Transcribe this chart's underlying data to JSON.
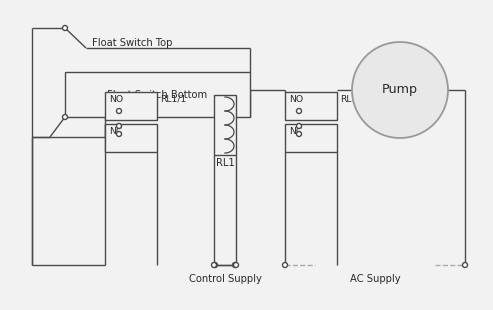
{
  "bg": "#f2f2f2",
  "lc": "#4a4a4a",
  "tc": "#2a2a2a",
  "pump_ec": "#999999",
  "pump_fc": "#e8e8e8",
  "lw": 1.0,
  "fs": 7.2,
  "labels": {
    "float_top": "Float Switch Top",
    "float_bottom": "Float Switch Bottom",
    "pump": "Pump",
    "rl1_1": "RL1/1",
    "rl1_2": "RL1/2",
    "rl1": "RL1",
    "no1": "NO",
    "nc1": "NC",
    "no2": "NO",
    "nc2": "NC",
    "control_supply": "Control Supply",
    "ac_supply": "AC Supply"
  }
}
